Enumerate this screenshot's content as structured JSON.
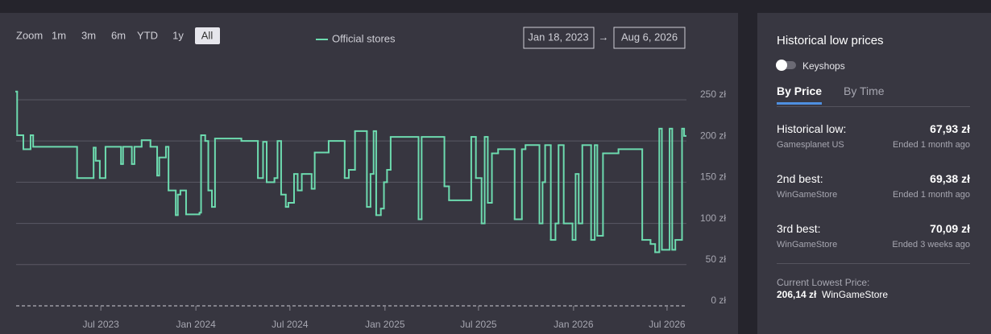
{
  "toolbar": {
    "zoom_label": "Zoom",
    "buttons": [
      "1m",
      "3m",
      "6m",
      "YTD",
      "1y",
      "All"
    ]
  },
  "range_selector": {
    "from": "Jan 18, 2023",
    "arrow": "→",
    "to": "Aug 6, 2026"
  },
  "chart_data": {
    "type": "line",
    "step": true,
    "x": [
      "2023-01-18",
      "2023-01-20",
      "2023-02-01",
      "2023-02-15",
      "2023-02-20",
      "2023-05-16",
      "2023-06-17",
      "2023-06-21",
      "2023-06-29",
      "2023-07-10",
      "2023-08-09",
      "2023-08-13",
      "2023-08-30",
      "2023-09-04",
      "2023-09-18",
      "2023-10-05",
      "2023-10-18",
      "2023-10-22",
      "2023-11-04",
      "2023-11-09",
      "2023-11-23",
      "2023-11-27",
      "2023-12-02",
      "2023-12-13",
      "2024-01-08",
      "2024-01-11",
      "2024-01-19",
      "2024-01-25",
      "2024-02-01",
      "2024-02-07",
      "2024-03-29",
      "2024-04-30",
      "2024-05-10",
      "2024-05-17",
      "2024-06-01",
      "2024-06-07",
      "2024-06-14",
      "2024-06-23",
      "2024-06-28",
      "2024-07-09",
      "2024-07-16",
      "2024-07-24",
      "2024-08-12",
      "2024-08-18",
      "2024-09-14",
      "2024-10-15",
      "2024-10-23",
      "2024-11-04",
      "2024-11-27",
      "2024-12-04",
      "2024-12-10",
      "2024-12-15",
      "2024-12-24",
      "2024-12-30",
      "2025-01-05",
      "2025-01-12",
      "2025-03-07",
      "2025-03-13",
      "2025-04-26",
      "2025-05-05",
      "2025-06-17",
      "2025-06-26",
      "2025-07-07",
      "2025-07-13",
      "2025-07-19",
      "2025-07-27",
      "2025-08-08",
      "2025-09-09",
      "2025-09-23",
      "2025-09-30",
      "2025-10-27",
      "2025-11-02",
      "2025-11-07",
      "2025-11-18",
      "2025-11-27",
      "2025-12-03",
      "2025-12-13",
      "2025-12-30",
      "2026-01-05",
      "2026-01-11",
      "2026-01-18",
      "2026-02-04",
      "2026-02-11",
      "2026-02-16",
      "2026-02-27",
      "2026-03-29",
      "2026-05-14",
      "2026-05-30",
      "2026-06-08",
      "2026-06-16",
      "2026-06-21",
      "2026-07-06",
      "2026-07-11",
      "2026-07-17",
      "2026-07-30",
      "2026-08-03"
    ],
    "series": [
      {
        "name": "Official stores",
        "color": "#6ddbaf",
        "values": [
          260,
          207,
          190,
          207,
          193,
          155,
          192,
          176,
          155,
          193,
          172,
          193,
          172,
          193,
          201,
          193,
          158,
          180,
          193,
          140,
          110,
          135,
          140,
          111,
          113,
          207,
          200,
          140,
          120,
          203,
          200,
          155,
          199,
          150,
          155,
          200,
          135,
          120,
          125,
          160,
          140,
          160,
          142,
          186,
          200,
          155,
          165,
          212,
          120,
          160,
          212,
          110,
          118,
          150,
          165,
          205,
          105,
          205,
          145,
          128,
          205,
          155,
          100,
          205,
          125,
          185,
          190,
          105,
          190,
          195,
          100,
          150,
          195,
          80,
          100,
          195,
          100,
          80,
          160,
          100,
          195,
          80,
          195,
          85,
          185,
          190,
          80,
          75,
          65,
          215,
          68,
          215,
          68,
          80,
          215,
          206.14
        ]
      }
    ],
    "xlim": [
      "2023-01-18",
      "2026-08-06"
    ],
    "xticks": [
      {
        "value": "2023-07-01",
        "label": "Jul 2023"
      },
      {
        "value": "2024-01-01",
        "label": "Jan 2024"
      },
      {
        "value": "2024-07-01",
        "label": "Jul 2024"
      },
      {
        "value": "2025-01-01",
        "label": "Jan 2025"
      },
      {
        "value": "2025-07-01",
        "label": "Jul 2025"
      },
      {
        "value": "2026-01-01",
        "label": "Jan 2026"
      },
      {
        "value": "2026-07-01",
        "label": "Jul 2026"
      }
    ],
    "ylim": [
      0,
      270
    ],
    "yticks": [
      {
        "value": 0,
        "label": "0 zł"
      },
      {
        "value": 50,
        "label": "50 zł"
      },
      {
        "value": 100,
        "label": "100 zł"
      },
      {
        "value": 150,
        "label": "150 zł"
      },
      {
        "value": 200,
        "label": "200 zł"
      },
      {
        "value": 250,
        "label": "250 zł"
      }
    ],
    "grid": true
  },
  "historical_lows": {
    "title": "Historical low prices",
    "toggle_label": "Keyshops",
    "tabs": [
      "By Price",
      "By Time"
    ],
    "entries": [
      {
        "label": "Historical low:",
        "price": "67,93 zł",
        "store": "Gamesplanet US",
        "ended": "Ended 1 month ago"
      },
      {
        "label": "2nd best:",
        "price": "69,38 zł",
        "store": "WinGameStore",
        "ended": "Ended 1 month ago"
      },
      {
        "label": "3rd best:",
        "price": "70,09 zł",
        "store": "WinGameStore",
        "ended": "Ended 3 weeks ago"
      }
    ],
    "current": {
      "label": "Current Lowest Price:",
      "price": "206,14 zł",
      "store": "WinGameStore"
    }
  }
}
